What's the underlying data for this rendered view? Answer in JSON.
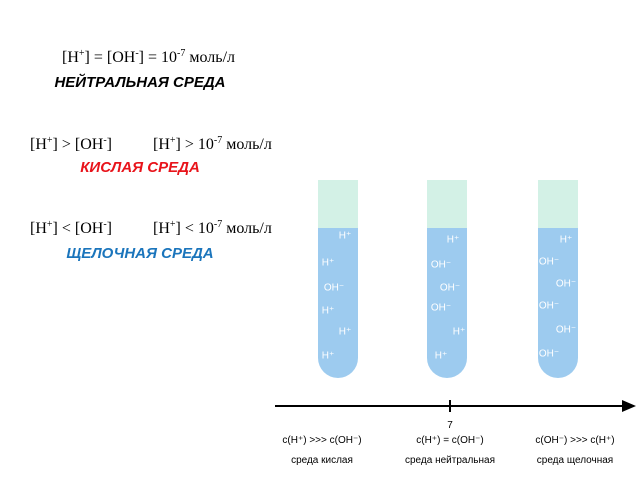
{
  "formulas": {
    "neutral": [
      "[H",
      "+",
      "] = [OH",
      "-",
      "] = 10",
      "-7",
      " моль/л"
    ],
    "acid_left": [
      "[H",
      "+",
      "] > [OH",
      "-",
      "]"
    ],
    "acid_right": [
      "[H",
      "+",
      "] > 10",
      "-7",
      " моль/л"
    ],
    "alkaline_left": [
      "[H",
      "+",
      "] < [OH",
      "-",
      "]"
    ],
    "alkaline_right": [
      "[H",
      "+",
      "] < 10",
      "-7",
      " моль/л"
    ]
  },
  "headings": {
    "neutral": "НЕЙТРАЛЬНАЯ СРЕДА",
    "acid": "КИСЛАЯ СРЕДА",
    "alkaline": "ЩЕЛОЧНАЯ СРЕДА"
  },
  "tubes": [
    {
      "ions": [
        "H⁺",
        "H⁺",
        "OH⁻",
        "H⁺",
        "H⁺",
        "H⁺"
      ],
      "relation": "c(H⁺) >>> c(OH⁻)",
      "medium": "среда кислая"
    },
    {
      "ions": [
        "H⁺",
        "OH⁻",
        "OH⁻",
        "OH⁻",
        "H⁺",
        "H⁺"
      ],
      "relation": "c(H⁺) = c(OH⁻)",
      "medium": "среда нейтральная"
    },
    {
      "ions": [
        "H⁺",
        "OH⁻",
        "OH⁻",
        "OH⁻",
        "OH⁻",
        "OH⁻"
      ],
      "relation": "c(OH⁻) >>> c(H⁺)",
      "medium": "среда щелочная"
    }
  ],
  "axis_label": "7"
}
